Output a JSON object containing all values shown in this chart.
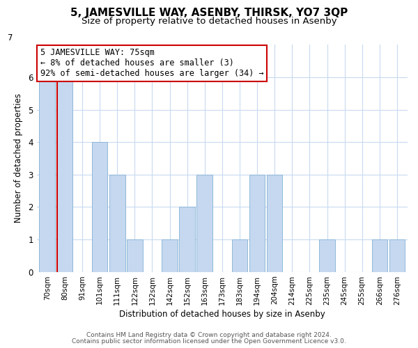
{
  "title": "5, JAMESVILLE WAY, ASENBY, THIRSK, YO7 3QP",
  "subtitle": "Size of property relative to detached houses in Asenby",
  "xlabel": "Distribution of detached houses by size in Asenby",
  "ylabel": "Number of detached properties",
  "categories": [
    "70sqm",
    "80sqm",
    "91sqm",
    "101sqm",
    "111sqm",
    "122sqm",
    "132sqm",
    "142sqm",
    "152sqm",
    "163sqm",
    "173sqm",
    "183sqm",
    "194sqm",
    "204sqm",
    "214sqm",
    "225sqm",
    "235sqm",
    "245sqm",
    "255sqm",
    "266sqm",
    "276sqm"
  ],
  "values": [
    6,
    6,
    0,
    4,
    3,
    1,
    0,
    1,
    2,
    3,
    0,
    1,
    3,
    3,
    0,
    0,
    1,
    0,
    0,
    1,
    1
  ],
  "bar_color": "#c5d8f0",
  "bar_edge_color": "#8fb8d8",
  "highlight_bar_index": 1,
  "highlight_color": "#cc0000",
  "annotation_text": "5 JAMESVILLE WAY: 75sqm\n← 8% of detached houses are smaller (3)\n92% of semi-detached houses are larger (34) →",
  "annotation_box_color": "#ffffff",
  "annotation_box_edge_color": "#cc0000",
  "ylim": [
    0,
    7
  ],
  "yticks": [
    0,
    1,
    2,
    3,
    4,
    5,
    6,
    7
  ],
  "footnote1": "Contains HM Land Registry data © Crown copyright and database right 2024.",
  "footnote2": "Contains public sector information licensed under the Open Government Licence v3.0.",
  "title_fontsize": 11,
  "subtitle_fontsize": 9.5,
  "background_color": "#ffffff",
  "grid_color": "#c8daf0"
}
